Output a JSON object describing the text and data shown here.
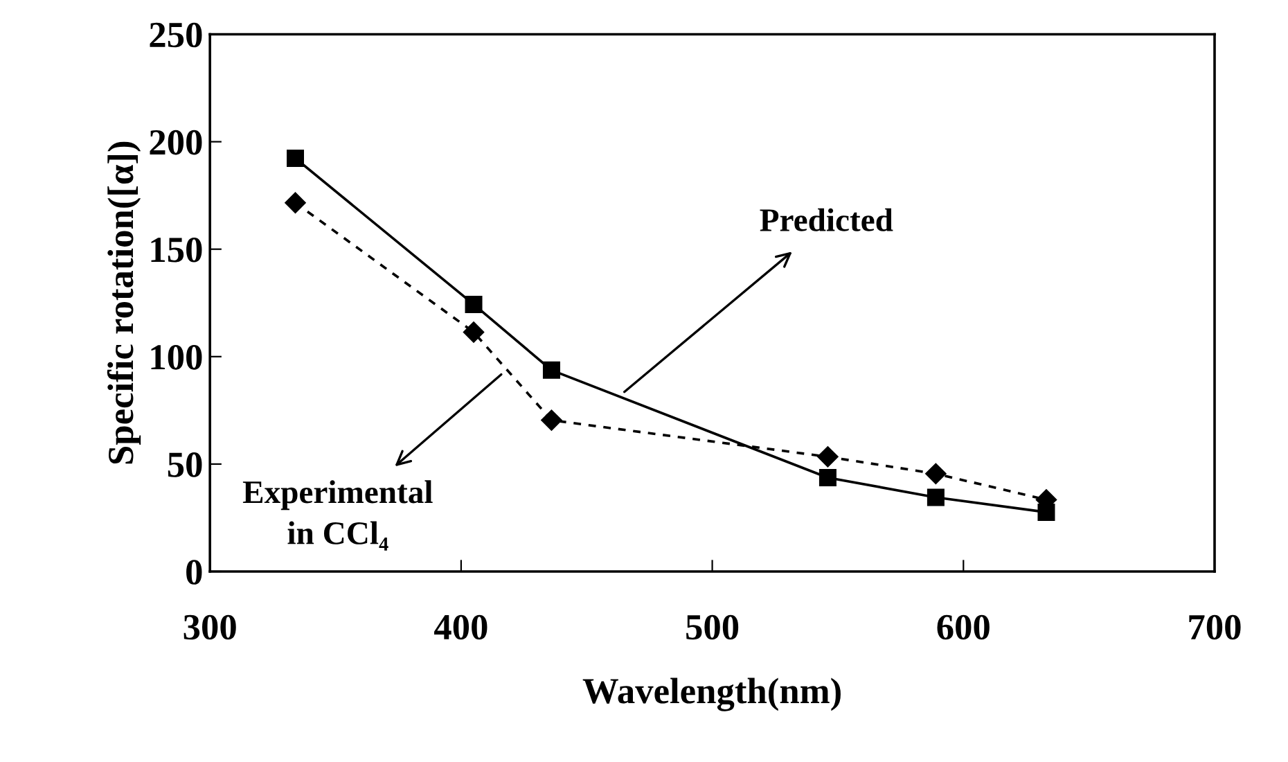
{
  "chart_data": {
    "type": "line",
    "xlabel": "Wavelength(nm)",
    "ylabel": "Specific rotation([α])",
    "x": [
      334,
      405,
      436,
      546,
      589,
      633
    ],
    "series": [
      {
        "color": "#000000",
        "marker": "square",
        "line_style": "solid",
        "values": [
          192.3,
          124.3,
          93.7,
          43.7,
          34.5,
          27.6
        ]
      },
      {
        "color": "#000000",
        "marker": "diamond",
        "line_style": "dashed",
        "values": [
          171.6,
          111.4,
          70.4,
          53.4,
          45.5,
          33.4
        ]
      }
    ],
    "annotations": [
      {
        "text": "Predicted",
        "x": 465,
        "y": 83.6
      },
      {
        "text": "Experimental\nin CCl₄",
        "x": 416,
        "y": 91.7
      }
    ],
    "xlim": [
      300,
      700
    ],
    "xticks": [
      300,
      400,
      500,
      600,
      700
    ],
    "ylim": [
      0,
      250
    ],
    "yticks": [
      0,
      50,
      100,
      150,
      200,
      250
    ],
    "grid": false,
    "legend": false
  }
}
